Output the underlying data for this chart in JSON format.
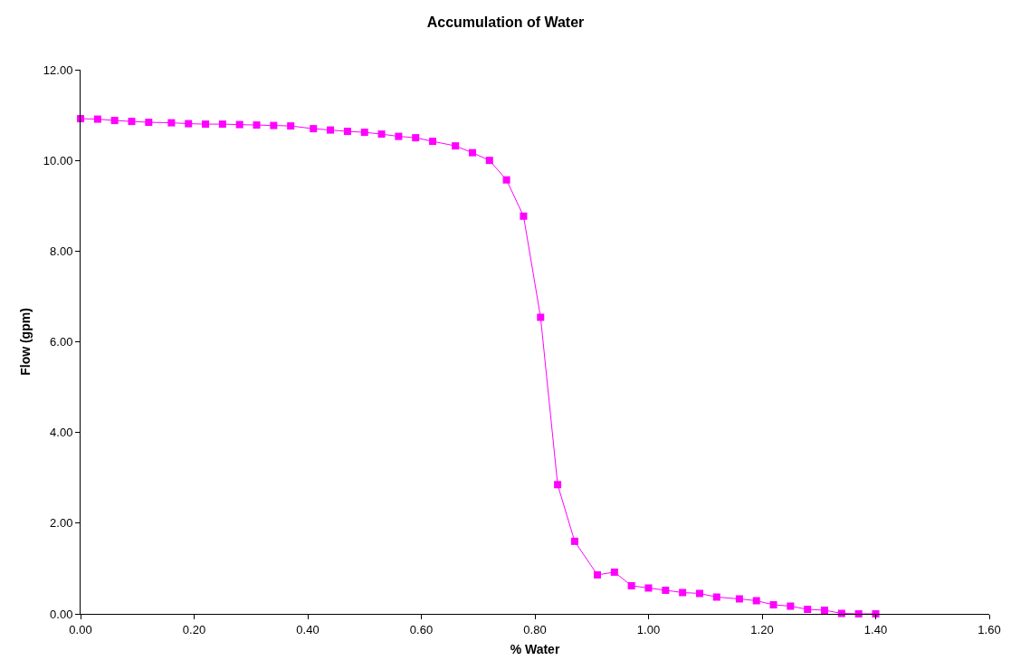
{
  "chart_data": {
    "type": "line",
    "title": "Accumulation of Water",
    "xlabel": "% Water",
    "ylabel": "Flow (gpm)",
    "x": [
      0,
      0.03,
      0.06,
      0.09,
      0.12,
      0.16,
      0.19,
      0.22,
      0.25,
      0.28,
      0.31,
      0.34,
      0.37,
      0.41,
      0.44,
      0.47,
      0.5,
      0.53,
      0.56,
      0.59,
      0.62,
      0.66,
      0.69,
      0.72,
      0.75,
      0.78,
      0.81,
      0.84,
      0.87,
      0.91,
      0.94,
      0.97,
      1.0,
      1.03,
      1.06,
      1.09,
      1.12,
      1.16,
      1.19,
      1.22,
      1.25,
      1.28,
      1.31,
      1.34,
      1.37,
      1.4
    ],
    "series": [
      {
        "color": "#ff00ff",
        "values": [
          10.92,
          10.91,
          10.88,
          10.86,
          10.84,
          10.83,
          10.81,
          10.8,
          10.8,
          10.79,
          10.78,
          10.77,
          10.76,
          10.7,
          10.67,
          10.64,
          10.62,
          10.58,
          10.53,
          10.5,
          10.42,
          10.32,
          10.17,
          10.0,
          9.57,
          8.77,
          6.54,
          2.85,
          1.6,
          0.86,
          0.92,
          0.62,
          0.57,
          0.52,
          0.47,
          0.45,
          0.37,
          0.33,
          0.29,
          0.2,
          0.17,
          0.1,
          0.08,
          0.01,
          0.0,
          0.0
        ]
      }
    ],
    "xlim": [
      0,
      1.6
    ],
    "xticks": [
      {
        "value": 0,
        "label": "0.00"
      },
      {
        "value": 0.2,
        "label": "0.20"
      },
      {
        "value": 0.4,
        "label": "0.40"
      },
      {
        "value": 0.6,
        "label": "0.60"
      },
      {
        "value": 0.8,
        "label": "0.80"
      },
      {
        "value": 1.0,
        "label": "1.00"
      },
      {
        "value": 1.2,
        "label": "1.20"
      },
      {
        "value": 1.4,
        "label": "1.40"
      },
      {
        "value": 1.6,
        "label": "1.60"
      }
    ],
    "ylim": [
      0,
      12
    ],
    "yticks": [
      {
        "value": 0,
        "label": "0.00"
      },
      {
        "value": 2,
        "label": "2.00"
      },
      {
        "value": 4,
        "label": "4.00"
      },
      {
        "value": 6,
        "label": "6.00"
      },
      {
        "value": 8,
        "label": "8.00"
      },
      {
        "value": 10,
        "label": "10.00"
      },
      {
        "value": 12,
        "label": "12.00"
      }
    ],
    "marker": "square",
    "line_style": "solid"
  }
}
